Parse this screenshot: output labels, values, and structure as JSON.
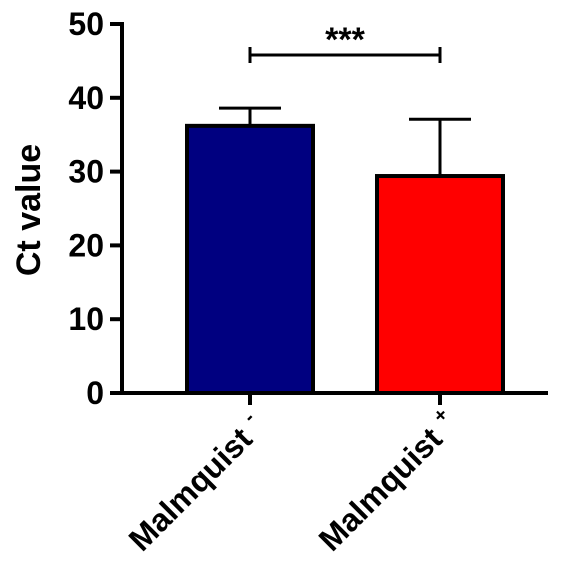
{
  "chart_data": {
    "type": "bar",
    "title": "",
    "xlabel": "",
    "ylabel": "Ct value",
    "ylim": [
      0,
      50
    ],
    "yticks": [
      0,
      10,
      20,
      30,
      40,
      50
    ],
    "grid": false,
    "legend": "none",
    "categories": [
      {
        "name": "Malmquist",
        "sup": "-"
      },
      {
        "name": "Malmquist",
        "sup": "+"
      }
    ],
    "series": [
      {
        "values": [
          36.2,
          29.4
        ],
        "error_upper": [
          38.6,
          37.1
        ],
        "colors": [
          "#000080",
          "#ff0000"
        ]
      }
    ],
    "annotations": [
      {
        "type": "significance",
        "from": 0,
        "to": 1,
        "label": "***",
        "y": 45.8
      }
    ]
  }
}
